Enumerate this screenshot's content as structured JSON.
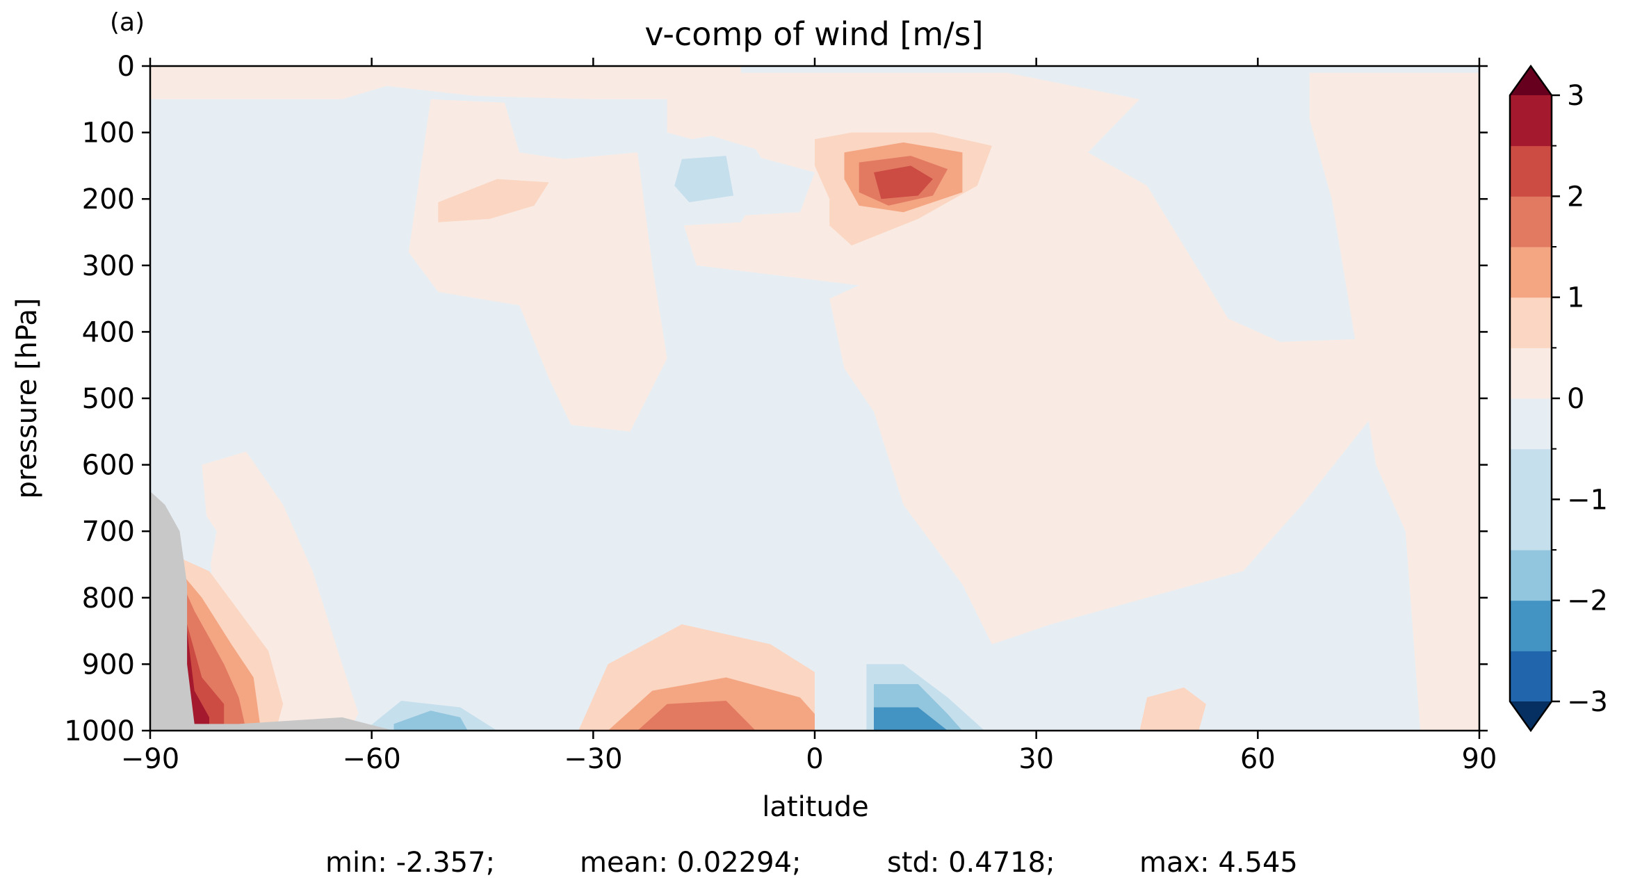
{
  "panel_label": "(a)",
  "stats": {
    "min": "min: -2.357;",
    "mean": "mean: 0.02294;",
    "std": "std: 0.4718;",
    "max": "max: 4.545"
  },
  "chart_data": {
    "type": "heatmap",
    "title": "v-comp of wind [m/s]",
    "xlabel": "latitude",
    "ylabel": "pressure [hPa]",
    "xlim": [
      -90,
      90
    ],
    "ylim": [
      1000,
      0
    ],
    "y_inverted": true,
    "x_ticks": [
      -90,
      -60,
      -30,
      0,
      30,
      60,
      90
    ],
    "x_tick_labels": [
      "−90",
      "−60",
      "−30",
      "0",
      "30",
      "60",
      "90"
    ],
    "y_ticks": [
      0,
      100,
      200,
      300,
      400,
      500,
      600,
      700,
      800,
      900,
      1000
    ],
    "y_tick_labels": [
      "0",
      "100",
      "200",
      "300",
      "400",
      "500",
      "600",
      "700",
      "800",
      "900",
      "1000"
    ],
    "colorbar": {
      "levels": [
        -3,
        -2.5,
        -2,
        -1.5,
        -1,
        -0.5,
        0,
        0.5,
        1,
        1.5,
        2,
        2.5,
        3
      ],
      "colors": [
        "#053061",
        "#2166ac",
        "#4393c3",
        "#92c5de",
        "#c6dfec",
        "#e6eef4",
        "#f9ebe3",
        "#fbd6c2",
        "#f4a582",
        "#e27a62",
        "#cc4c44",
        "#a4192d",
        "#67001f"
      ],
      "extend": "both",
      "tick_values": [
        3,
        2,
        1,
        0,
        -1,
        -2,
        -3
      ],
      "tick_labels": [
        "3",
        "2",
        "1",
        "0",
        "−1",
        "−2",
        "−3"
      ]
    },
    "background_color": "#e6eef4",
    "topography_color": "#c8c8c8",
    "regions": [
      {
        "name": "positive-broad-south",
        "value": 0.25,
        "points": [
          [
            -90,
            0
          ],
          [
            -10,
            0
          ],
          [
            -10,
            50
          ],
          [
            -30,
            50
          ],
          [
            -46,
            45
          ],
          [
            -58,
            30
          ],
          [
            -64,
            50
          ],
          [
            -90,
            50
          ]
        ]
      },
      {
        "name": "positive-broad-northtop",
        "value": 0.25,
        "points": [
          [
            -20,
            10
          ],
          [
            26,
            10
          ],
          [
            44,
            50
          ],
          [
            37,
            130
          ],
          [
            45,
            180
          ],
          [
            56,
            380
          ],
          [
            63,
            415
          ],
          [
            76,
            410
          ],
          [
            80,
            450
          ],
          [
            76,
            520
          ],
          [
            66,
            660
          ],
          [
            58,
            760
          ],
          [
            32,
            840
          ],
          [
            24,
            870
          ],
          [
            20,
            780
          ],
          [
            12,
            660
          ],
          [
            8,
            520
          ],
          [
            4,
            455
          ],
          [
            2,
            350
          ],
          [
            6,
            330
          ],
          [
            -16,
            300
          ],
          [
            -18,
            230
          ],
          [
            -2,
            220
          ],
          [
            0,
            160
          ],
          [
            -20,
            100
          ]
        ]
      },
      {
        "name": "positive-north-pole-strip",
        "value": 0.25,
        "points": [
          [
            67,
            10
          ],
          [
            90,
            10
          ],
          [
            90,
            1000
          ],
          [
            82,
            1000
          ],
          [
            80,
            700
          ],
          [
            76,
            600
          ],
          [
            73,
            400
          ],
          [
            70,
            200
          ],
          [
            67,
            80
          ]
        ]
      },
      {
        "name": "positive-south-lower",
        "value": 0.25,
        "points": [
          [
            -83,
            600
          ],
          [
            -77,
            580
          ],
          [
            -72,
            660
          ],
          [
            -68,
            760
          ],
          [
            -64,
            900
          ],
          [
            -61,
            1000
          ],
          [
            -79,
            1000
          ],
          [
            -81,
            850
          ]
        ]
      },
      {
        "name": "positive-southmid-upper",
        "value": 0.25,
        "points": [
          [
            -52,
            50
          ],
          [
            -42,
            55
          ],
          [
            -40,
            130
          ],
          [
            -34,
            140
          ],
          [
            -24,
            130
          ],
          [
            -22,
            300
          ],
          [
            -20,
            440
          ],
          [
            -25,
            550
          ],
          [
            -33,
            540
          ],
          [
            -36,
            470
          ],
          [
            -40,
            360
          ],
          [
            -51,
            340
          ],
          [
            -55,
            280
          ]
        ]
      },
      {
        "name": "positive-ridge-200",
        "value": 0.75,
        "points": [
          [
            -51,
            205
          ],
          [
            -43,
            170
          ],
          [
            -36,
            175
          ],
          [
            -38,
            210
          ],
          [
            -44,
            230
          ],
          [
            -51,
            235
          ]
        ]
      },
      {
        "name": "positive-jet-nh",
        "value": 0.75,
        "points": [
          [
            0,
            110
          ],
          [
            5,
            100
          ],
          [
            16,
            100
          ],
          [
            24,
            120
          ],
          [
            22,
            180
          ],
          [
            14,
            230
          ],
          [
            5,
            270
          ],
          [
            2,
            240
          ],
          [
            2,
            200
          ],
          [
            0,
            150
          ]
        ]
      },
      {
        "name": "positive-jet-nh-1",
        "value": 1.25,
        "points": [
          [
            4,
            130
          ],
          [
            12,
            115
          ],
          [
            20,
            130
          ],
          [
            20,
            190
          ],
          [
            12,
            220
          ],
          [
            6,
            210
          ],
          [
            4,
            170
          ]
        ]
      },
      {
        "name": "positive-jet-nh-2",
        "value": 1.75,
        "points": [
          [
            6,
            145
          ],
          [
            13,
            135
          ],
          [
            18,
            155
          ],
          [
            16,
            195
          ],
          [
            10,
            210
          ],
          [
            6,
            190
          ]
        ]
      },
      {
        "name": "positive-jet-nh-3",
        "value": 2.25,
        "points": [
          [
            8,
            160
          ],
          [
            13,
            150
          ],
          [
            16,
            170
          ],
          [
            14,
            195
          ],
          [
            9,
            200
          ]
        ]
      },
      {
        "name": "positive-lower-subtropics",
        "value": 0.75,
        "points": [
          [
            -32,
            1000
          ],
          [
            -28,
            900
          ],
          [
            -18,
            840
          ],
          [
            -6,
            870
          ],
          [
            4,
            940
          ],
          [
            6,
            1000
          ]
        ]
      },
      {
        "name": "positive-lower-subtropics-1",
        "value": 1.25,
        "points": [
          [
            -28,
            1000
          ],
          [
            -22,
            940
          ],
          [
            -12,
            920
          ],
          [
            -2,
            950
          ],
          [
            2,
            1000
          ]
        ]
      },
      {
        "name": "positive-lower-subtropics-2",
        "value": 1.75,
        "points": [
          [
            -24,
            1000
          ],
          [
            -20,
            960
          ],
          [
            -12,
            955
          ],
          [
            -8,
            1000
          ]
        ]
      },
      {
        "name": "positive-south-lowlevel",
        "value": 0.75,
        "points": [
          [
            -86,
            740
          ],
          [
            -82,
            760
          ],
          [
            -78,
            820
          ],
          [
            -74,
            880
          ],
          [
            -72,
            960
          ],
          [
            -73,
            1000
          ],
          [
            -86,
            1000
          ]
        ]
      },
      {
        "name": "positive-south-lowlevel-1",
        "value": 1.25,
        "points": [
          [
            -86,
            760
          ],
          [
            -83,
            800
          ],
          [
            -79,
            870
          ],
          [
            -76,
            920
          ],
          [
            -75,
            1000
          ],
          [
            -86,
            1000
          ]
        ]
      },
      {
        "name": "positive-south-lowlevel-2",
        "value": 1.75,
        "points": [
          [
            -86,
            770
          ],
          [
            -84,
            820
          ],
          [
            -80,
            900
          ],
          [
            -78,
            950
          ],
          [
            -77,
            1000
          ],
          [
            -86,
            1000
          ]
        ]
      },
      {
        "name": "positive-south-lowlevel-3",
        "value": 2.25,
        "points": [
          [
            -86,
            780
          ],
          [
            -85,
            840
          ],
          [
            -83,
            920
          ],
          [
            -80,
            960
          ],
          [
            -80,
            1000
          ],
          [
            -86,
            1000
          ]
        ]
      },
      {
        "name": "positive-south-lowlevel-4",
        "value": 2.75,
        "points": [
          [
            -86,
            790
          ],
          [
            -85,
            850
          ],
          [
            -84,
            940
          ],
          [
            -82,
            980
          ],
          [
            -82,
            1000
          ],
          [
            -86,
            1000
          ]
        ]
      },
      {
        "name": "positive-south-lowlevel-5",
        "value": 3.25,
        "points": [
          [
            -86,
            800
          ],
          [
            -85.5,
            830
          ],
          [
            -85,
            860
          ],
          [
            -86,
            860
          ]
        ]
      },
      {
        "name": "positive-north-lowlevel",
        "value": 0.75,
        "points": [
          [
            44,
            1000
          ],
          [
            45,
            950
          ],
          [
            50,
            935
          ],
          [
            53,
            960
          ],
          [
            52,
            1000
          ]
        ]
      },
      {
        "name": "negative-upper-sh",
        "value": -0.75,
        "points": [
          [
            -22,
            120
          ],
          [
            -14,
            105
          ],
          [
            -8,
            125
          ],
          [
            -6,
            160
          ],
          [
            -10,
            235
          ],
          [
            -18,
            240
          ],
          [
            -22,
            200
          ]
        ]
      },
      {
        "name": "negative-upper-sh-1",
        "value": -1.25,
        "points": [
          [
            -18,
            140
          ],
          [
            -12,
            135
          ],
          [
            -11,
            195
          ],
          [
            -17,
            205
          ],
          [
            -19,
            180
          ]
        ]
      },
      {
        "name": "negative-near-equator-low",
        "value": -0.75,
        "points": [
          [
            0,
            840
          ],
          [
            4,
            740
          ],
          [
            6,
            720
          ],
          [
            10,
            850
          ],
          [
            16,
            920
          ],
          [
            24,
            940
          ],
          [
            30,
            1000
          ],
          [
            5,
            1000
          ],
          [
            0,
            1000
          ]
        ]
      },
      {
        "name": "negative-near-equator-low-1",
        "value": -1.25,
        "points": [
          [
            7,
            900
          ],
          [
            12,
            900
          ],
          [
            18,
            950
          ],
          [
            23,
            1000
          ],
          [
            7,
            1000
          ]
        ]
      },
      {
        "name": "negative-near-equator-low-2",
        "value": -1.75,
        "points": [
          [
            8,
            930
          ],
          [
            14,
            930
          ],
          [
            18,
            975
          ],
          [
            20,
            1000
          ],
          [
            8,
            1000
          ]
        ]
      },
      {
        "name": "negative-near-equator-low-3",
        "value": -2.25,
        "points": [
          [
            8,
            965
          ],
          [
            14,
            965
          ],
          [
            18,
            1000
          ],
          [
            8,
            1000
          ]
        ]
      },
      {
        "name": "negative-sh-low",
        "value": -0.75,
        "points": [
          [
            -63,
            1000
          ],
          [
            -60,
            935
          ],
          [
            -52,
            915
          ],
          [
            -42,
            940
          ],
          [
            -39,
            1000
          ]
        ]
      },
      {
        "name": "negative-sh-low-1",
        "value": -1.25,
        "points": [
          [
            -61,
            1000
          ],
          [
            -56,
            955
          ],
          [
            -48,
            965
          ],
          [
            -43,
            1000
          ]
        ]
      },
      {
        "name": "negative-sh-low-2",
        "value": -1.75,
        "points": [
          [
            -57,
            990
          ],
          [
            -52,
            970
          ],
          [
            -48,
            980
          ],
          [
            -47,
            1000
          ],
          [
            -57,
            1000
          ]
        ]
      },
      {
        "name": "negative-south-mid",
        "value": -0.75,
        "points": [
          [
            -88,
            650
          ],
          [
            -84,
            650
          ],
          [
            -81,
            700
          ],
          [
            -82,
            760
          ],
          [
            -86,
            740
          ]
        ]
      },
      {
        "name": "negative-north-lowlevel",
        "value": -0.75,
        "points": [
          [
            60,
            1000
          ],
          [
            63,
            960
          ],
          [
            66,
            950
          ],
          [
            70,
            980
          ],
          [
            72,
            1000
          ]
        ]
      }
    ],
    "topography": [
      [
        -90,
        640
      ],
      [
        -88,
        660
      ],
      [
        -86,
        700
      ],
      [
        -85,
        780
      ],
      [
        -85,
        900
      ],
      [
        -84,
        990
      ],
      [
        -78,
        990
      ],
      [
        -64,
        980
      ],
      [
        -57,
        1000
      ],
      [
        -90,
        1000
      ]
    ]
  }
}
